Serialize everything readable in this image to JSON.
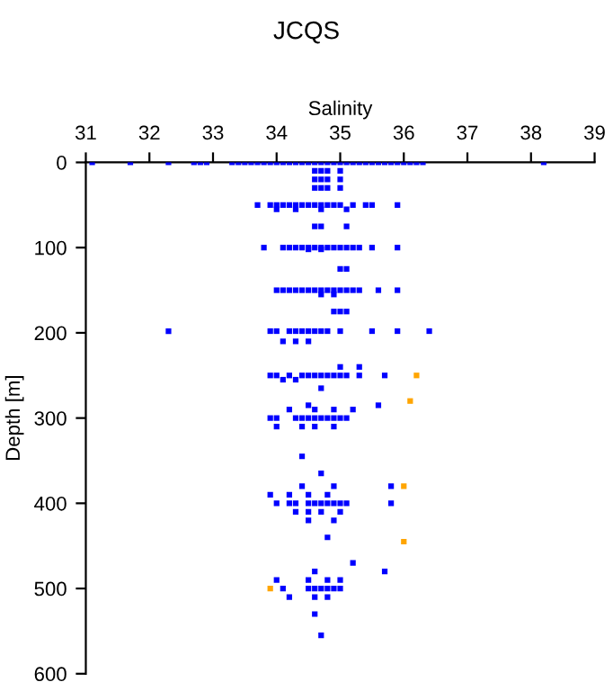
{
  "chart_data": {
    "type": "scatter",
    "title": "JCQS",
    "xlabel": "Salinity",
    "ylabel": "Depth [m]",
    "xlim": [
      31,
      39
    ],
    "xticks": [
      31,
      32,
      33,
      34,
      35,
      36,
      37,
      38,
      39
    ],
    "ylim": [
      600,
      0
    ],
    "yticks": [
      0,
      100,
      200,
      300,
      400,
      500,
      600
    ],
    "marker": "square",
    "grid": false,
    "legend": false,
    "series": [
      {
        "color": "#0000ff",
        "x": [
          31.1,
          31.7,
          32.3,
          32.7,
          32.8,
          32.9,
          33.3,
          33.4,
          33.5,
          33.6,
          33.7,
          33.8,
          33.9,
          34.0,
          34.1,
          34.2,
          34.3,
          34.4,
          34.5,
          34.6,
          34.7,
          34.8,
          34.9,
          35.0,
          35.1,
          35.2,
          35.3,
          35.4,
          35.5,
          35.6,
          35.7,
          35.8,
          35.9,
          36.0,
          36.1,
          36.2,
          36.3,
          38.2,
          34.6,
          34.7,
          34.8,
          35.0,
          34.6,
          34.7,
          34.8,
          35.0,
          34.6,
          34.7,
          34.8,
          35.0,
          33.7,
          33.9,
          34.0,
          34.1,
          34.2,
          34.3,
          34.4,
          34.5,
          34.6,
          34.7,
          34.8,
          34.9,
          35.0,
          35.2,
          35.4,
          35.5,
          35.9,
          34.0,
          34.3,
          34.7,
          35.1,
          34.6,
          34.7,
          35.1,
          33.8,
          34.1,
          34.2,
          34.3,
          34.4,
          34.5,
          34.6,
          34.7,
          34.8,
          34.9,
          35.0,
          35.1,
          35.2,
          35.3,
          35.5,
          35.9,
          34.5,
          34.7,
          35.0,
          35.1,
          34.0,
          34.1,
          34.2,
          34.3,
          34.4,
          34.5,
          34.6,
          34.7,
          34.8,
          34.9,
          35.0,
          35.1,
          35.2,
          35.3,
          35.6,
          35.9,
          34.7,
          34.9,
          34.9,
          35.0,
          35.1,
          32.3,
          33.9,
          34.0,
          34.2,
          34.3,
          34.4,
          34.5,
          34.6,
          34.7,
          34.8,
          35.0,
          35.5,
          35.9,
          36.4,
          34.1,
          34.3,
          34.5,
          35.3,
          35.0,
          33.9,
          34.0,
          34.2,
          34.4,
          34.5,
          34.6,
          34.7,
          34.8,
          34.9,
          35.0,
          35.1,
          35.3,
          35.7,
          34.1,
          34.3,
          34.7,
          34.5,
          35.6,
          34.2,
          34.6,
          34.9,
          35.2,
          33.9,
          34.0,
          34.3,
          34.4,
          34.5,
          34.6,
          34.7,
          34.8,
          34.9,
          35.0,
          35.1,
          34.0,
          34.4,
          34.6,
          34.9,
          34.4,
          34.7,
          34.4,
          34.9,
          35.8,
          33.9,
          34.2,
          34.5,
          34.8,
          34.0,
          34.2,
          34.3,
          34.5,
          34.6,
          34.7,
          34.8,
          34.9,
          35.0,
          35.1,
          35.8,
          34.3,
          34.5,
          34.7,
          35.0,
          34.5,
          34.9,
          34.8,
          35.2,
          35.7,
          34.6,
          34.0,
          34.5,
          34.8,
          35.0,
          34.1,
          34.5,
          34.6,
          34.7,
          34.8,
          34.9,
          35.0,
          34.2,
          34.6,
          34.8,
          34.6,
          34.7
        ],
        "values": [
          0,
          0,
          0,
          0,
          0,
          0,
          0,
          0,
          0,
          0,
          0,
          0,
          0,
          0,
          0,
          0,
          0,
          0,
          0,
          0,
          0,
          0,
          0,
          0,
          0,
          0,
          0,
          0,
          0,
          0,
          0,
          0,
          0,
          0,
          0,
          0,
          0,
          0,
          10,
          10,
          10,
          10,
          20,
          20,
          20,
          20,
          30,
          30,
          30,
          30,
          50,
          50,
          50,
          50,
          50,
          50,
          50,
          50,
          50,
          50,
          50,
          50,
          50,
          50,
          50,
          50,
          50,
          55,
          55,
          55,
          55,
          75,
          75,
          75,
          100,
          100,
          100,
          100,
          100,
          100,
          100,
          100,
          100,
          100,
          100,
          100,
          100,
          100,
          100,
          100,
          102,
          102,
          125,
          125,
          150,
          150,
          150,
          150,
          150,
          150,
          150,
          150,
          150,
          150,
          150,
          150,
          150,
          150,
          150,
          150,
          155,
          155,
          175,
          175,
          175,
          198,
          198,
          198,
          198,
          198,
          198,
          198,
          198,
          198,
          198,
          198,
          198,
          198,
          198,
          210,
          210,
          210,
          240,
          240,
          250,
          250,
          250,
          250,
          250,
          250,
          250,
          250,
          250,
          250,
          250,
          250,
          250,
          255,
          255,
          265,
          285,
          285,
          290,
          290,
          290,
          290,
          300,
          300,
          300,
          300,
          300,
          300,
          300,
          300,
          300,
          300,
          300,
          310,
          310,
          310,
          310,
          345,
          365,
          380,
          380,
          380,
          390,
          390,
          390,
          390,
          400,
          400,
          400,
          400,
          400,
          400,
          400,
          400,
          400,
          400,
          400,
          410,
          410,
          410,
          410,
          420,
          420,
          440,
          470,
          480,
          480,
          490,
          490,
          490,
          490,
          500,
          500,
          500,
          500,
          500,
          500,
          500,
          510,
          510,
          510,
          530,
          555
        ]
      },
      {
        "color": "#ffa500",
        "x": [
          36.2,
          36.1,
          36.0,
          36.0,
          33.9
        ],
        "values": [
          250,
          280,
          380,
          445,
          500
        ]
      }
    ]
  }
}
